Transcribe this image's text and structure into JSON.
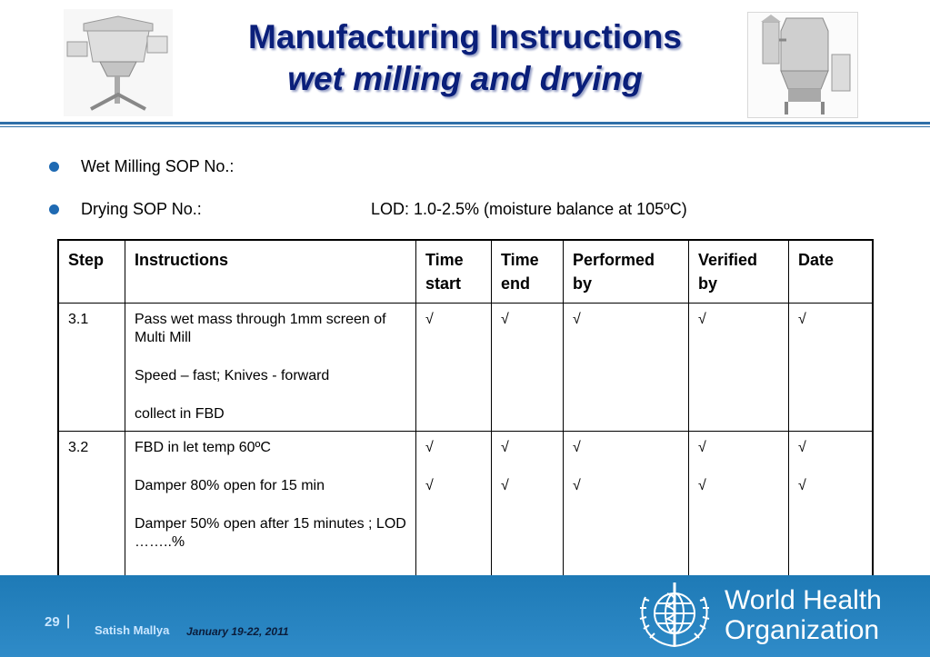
{
  "title": {
    "line1": "Manufacturing Instructions",
    "line2": "wet milling and drying"
  },
  "bullets": {
    "wet_milling": "Wet Milling SOP No.:",
    "drying": "Drying SOP No.:",
    "lod": "LOD: 1.0-2.5% (moisture balance at 105ºC)"
  },
  "table": {
    "headers": {
      "step": "Step",
      "instructions": "Instructions",
      "time_start_1": "Time",
      "time_start_2": "start",
      "time_end_1": "Time",
      "time_end_2": "end",
      "performed_1": "Performed",
      "performed_2": "by",
      "verified_1": "Verified",
      "verified_2": "by",
      "date": "Date"
    },
    "rows": [
      {
        "step": "3.1",
        "instructions": [
          "Pass wet mass through 1mm screen of Multi Mill",
          "Speed – fast; Knives - forward",
          "collect in FBD"
        ],
        "check": "√"
      },
      {
        "step": "3.2",
        "instructions": [
          "FBD in let temp 60ºC",
          "Damper 80% open for 15 min",
          "Damper 50% open after 15 minutes ; LOD ……..%"
        ],
        "check": "√"
      }
    ]
  },
  "footer": {
    "page": "29",
    "separator": "|",
    "author": "Satish Mallya",
    "date": "January 19-22, 2011",
    "org_line1": "World Health",
    "org_line2": "Organization"
  },
  "colors": {
    "title": "#0a1f7a",
    "accent": "#2f6fa8",
    "bullet": "#1f6ab3",
    "footer": "#2183bf"
  }
}
